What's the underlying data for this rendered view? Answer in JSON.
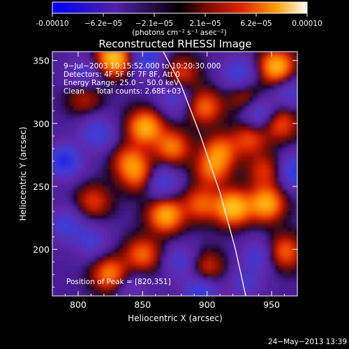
{
  "chart_data": {
    "type": "heatmap",
    "title": "Reconstructed RHESSI Image",
    "xlabel": "Heliocentric X (arcsec)",
    "ylabel": "Heliocentric Y (arcsec)",
    "xlim": [
      780,
      970
    ],
    "ylim": [
      163,
      357
    ],
    "xticks": [
      800,
      850,
      900,
      950
    ],
    "yticks": [
      200,
      250,
      300,
      350
    ],
    "colorbar": {
      "ticks": [
        "-0.00010",
        "−6.2e−05",
        "−2.1e−05",
        "2.1e−05",
        "6.2e−05",
        "0.00010"
      ],
      "unit_label": "(photons cm⁻² s⁻¹ asec⁻²)",
      "range": [
        -0.0001,
        0.0001
      ]
    },
    "annotations": [
      "9−Jul−2003 10:15:52.000 to 10:20:30.000",
      "Detectors: 4F 5F 6F 7F 8F, Att 0",
      "Energy Range: 25.0 − 50.0 keV",
      "Clean     Total counts: 2.68E+03"
    ],
    "peak_label": "Position of Peak = [820,351]",
    "peak": [
      820,
      351
    ],
    "limb": [
      [
        866,
        357
      ],
      [
        880,
        330
      ],
      [
        895,
        290
      ],
      [
        910,
        245
      ],
      [
        922,
        200
      ],
      [
        930,
        163
      ]
    ],
    "hot_spots": [
      {
        "x": 828,
        "y": 352,
        "v": 1.0
      },
      {
        "x": 954,
        "y": 345,
        "v": 0.9
      },
      {
        "x": 852,
        "y": 297,
        "v": 0.85
      },
      {
        "x": 840,
        "y": 270,
        "v": 0.55
      },
      {
        "x": 873,
        "y": 281,
        "v": 0.65
      },
      {
        "x": 898,
        "y": 313,
        "v": 0.6
      },
      {
        "x": 910,
        "y": 278,
        "v": 0.6
      },
      {
        "x": 933,
        "y": 288,
        "v": 0.5
      },
      {
        "x": 957,
        "y": 300,
        "v": 0.55
      },
      {
        "x": 904,
        "y": 263,
        "v": 0.55
      },
      {
        "x": 868,
        "y": 227,
        "v": 0.85
      },
      {
        "x": 895,
        "y": 236,
        "v": 0.55
      },
      {
        "x": 920,
        "y": 233,
        "v": 0.95
      },
      {
        "x": 946,
        "y": 236,
        "v": 0.85
      },
      {
        "x": 847,
        "y": 258,
        "v": 0.5
      },
      {
        "x": 825,
        "y": 180,
        "v": 0.7
      },
      {
        "x": 850,
        "y": 196,
        "v": 0.6
      },
      {
        "x": 812,
        "y": 238,
        "v": 0.45
      },
      {
        "x": 945,
        "y": 262,
        "v": 0.45
      },
      {
        "x": 960,
        "y": 198,
        "v": 0.6
      },
      {
        "x": 900,
        "y": 185,
        "v": 0.45
      },
      {
        "x": 880,
        "y": 340,
        "v": 0.45
      },
      {
        "x": 930,
        "y": 320,
        "v": 0.4
      },
      {
        "x": 805,
        "y": 320,
        "v": 0.35
      },
      {
        "x": 815,
        "y": 292,
        "v": -0.5
      },
      {
        "x": 805,
        "y": 340,
        "v": -0.4
      },
      {
        "x": 789,
        "y": 270,
        "v": -0.7
      },
      {
        "x": 853,
        "y": 352,
        "v": -0.6
      },
      {
        "x": 875,
        "y": 320,
        "v": -0.4
      },
      {
        "x": 925,
        "y": 340,
        "v": -0.5
      },
      {
        "x": 940,
        "y": 308,
        "v": -0.55
      },
      {
        "x": 965,
        "y": 325,
        "v": -0.4
      },
      {
        "x": 790,
        "y": 220,
        "v": -0.45
      },
      {
        "x": 865,
        "y": 253,
        "v": -0.5
      },
      {
        "x": 810,
        "y": 207,
        "v": -0.4
      },
      {
        "x": 880,
        "y": 190,
        "v": -0.4
      },
      {
        "x": 940,
        "y": 195,
        "v": -0.4
      },
      {
        "x": 968,
        "y": 262,
        "v": -0.6
      },
      {
        "x": 895,
        "y": 166,
        "v": -0.6
      },
      {
        "x": 930,
        "y": 173,
        "v": -0.35
      },
      {
        "x": 840,
        "y": 170,
        "v": -0.3
      }
    ]
  },
  "footer": {
    "date": "24−May−2013 13:39"
  }
}
